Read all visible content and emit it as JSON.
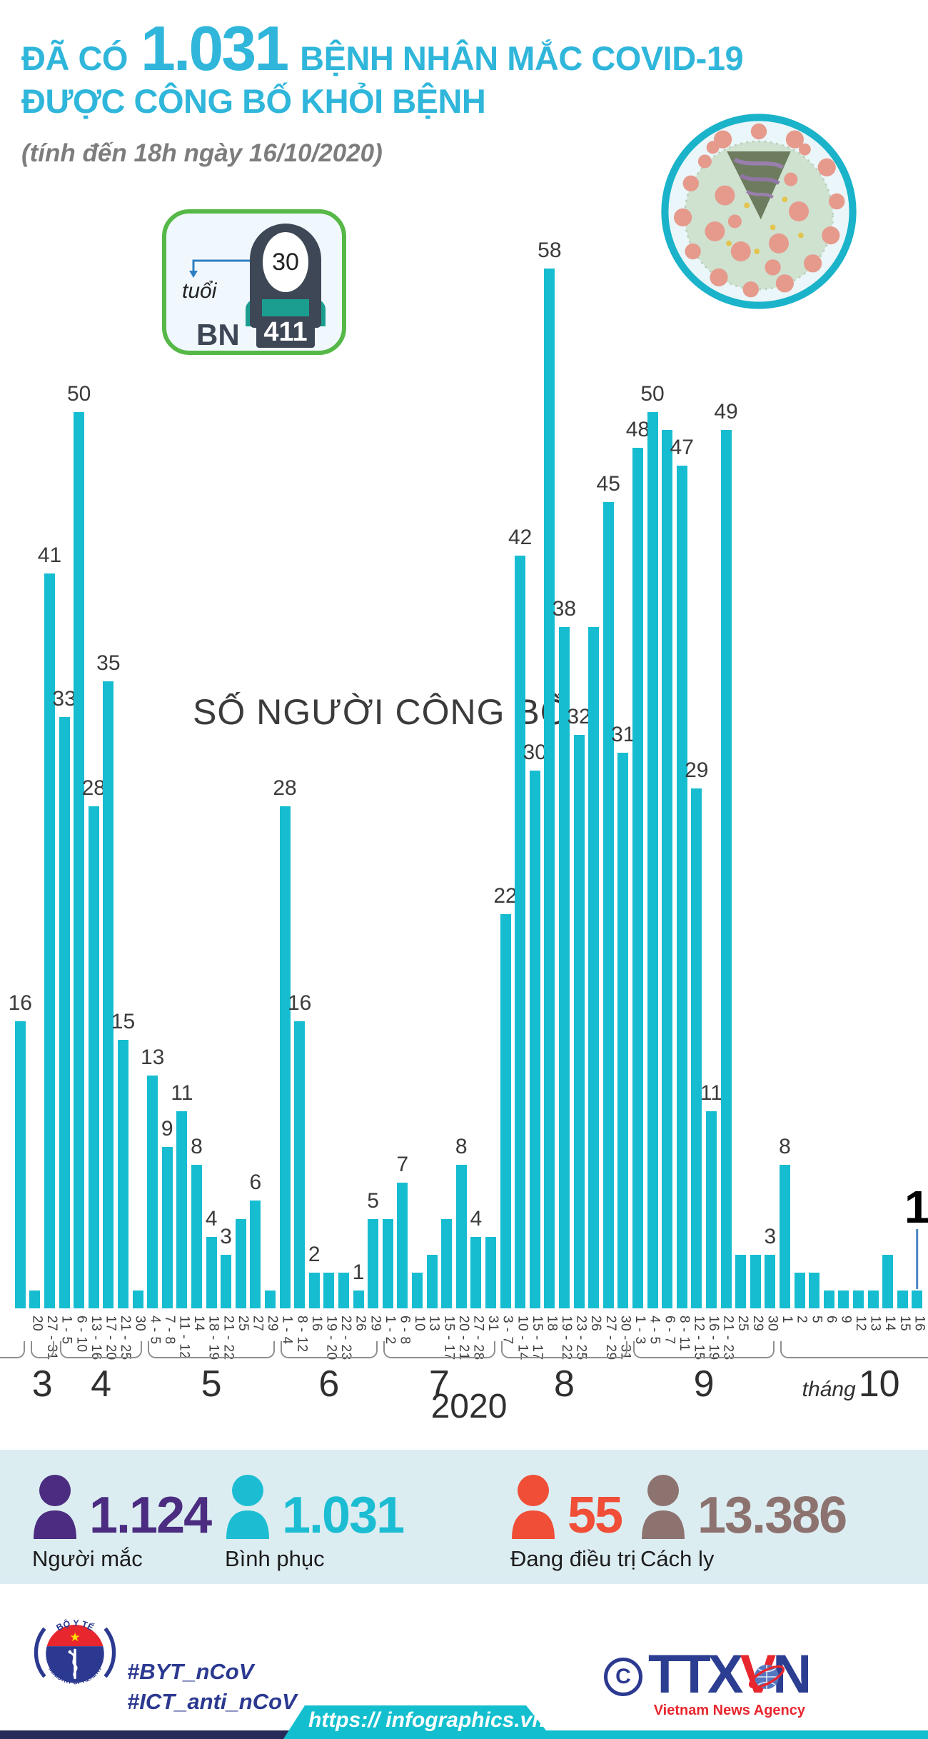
{
  "header": {
    "title_prefix": "ĐÃ CÓ",
    "title_number": "1.031",
    "title_suffix": "BỆNH NHÂN MẮC COVID-19",
    "title_line2": "ĐƯỢC CÔNG BỐ KHỎI BỆNH",
    "subtitle": "(tính đến 18h ngày 16/10/2020)",
    "accent_color": "#2fb6da"
  },
  "patient_badge": {
    "age_label": "tuổi",
    "age_value": "30",
    "bn_label": "BN",
    "bn_number": "411",
    "border_color": "#56b847"
  },
  "chart_data": {
    "type": "bar",
    "title": "SỐ NGƯỜI CÔNG BỐ",
    "year_label": "2020",
    "month_axis_word": "tháng",
    "bar_color": "#16bdd1",
    "ylim": [
      0,
      58
    ],
    "legend_position": "none",
    "grid": false,
    "annotation": {
      "text": "1",
      "applies_to": "16/10"
    },
    "groups": [
      {
        "month": "",
        "cut_left": true,
        "bars": [
          {
            "date": "",
            "value": 16,
            "show_value": true
          }
        ]
      },
      {
        "month": "3",
        "bars": [
          {
            "date": "20",
            "value": 1,
            "show_value": false
          },
          {
            "date": "27 - 31",
            "value": 41,
            "show_value": true
          }
        ]
      },
      {
        "month": "4",
        "bars": [
          {
            "date": "1 - 5",
            "value": 33,
            "show_value": true
          },
          {
            "date": "6 - 10",
            "value": 50,
            "show_value": true
          },
          {
            "date": "13 - 16",
            "value": 28,
            "show_value": true
          },
          {
            "date": "17 - 20",
            "value": 35,
            "show_value": true
          },
          {
            "date": "21 - 25",
            "value": 15,
            "show_value": true
          },
          {
            "date": "30",
            "value": 1,
            "show_value": false
          }
        ]
      },
      {
        "month": "5",
        "bars": [
          {
            "date": "4 - 5",
            "value": 13,
            "show_value": true
          },
          {
            "date": "7 - 8",
            "value": 9,
            "show_value": true
          },
          {
            "date": "11 - 12",
            "value": 11,
            "show_value": true
          },
          {
            "date": "14",
            "value": 8,
            "show_value": true
          },
          {
            "date": "18 - 19",
            "value": 4,
            "show_value": true
          },
          {
            "date": "21 - 22",
            "value": 3,
            "show_value": true
          },
          {
            "date": "25",
            "value": 5,
            "show_value": false
          },
          {
            "date": "27",
            "value": 6,
            "show_value": true
          },
          {
            "date": "29",
            "value": 1,
            "show_value": false
          }
        ]
      },
      {
        "month": "6",
        "bars": [
          {
            "date": "1 - 4",
            "value": 28,
            "show_value": true
          },
          {
            "date": "8 - 12",
            "value": 16,
            "show_value": true
          },
          {
            "date": "16",
            "value": 2,
            "show_value": true
          },
          {
            "date": "19 - 20",
            "value": 2,
            "show_value": false
          },
          {
            "date": "22 - 23",
            "value": 2,
            "show_value": false
          },
          {
            "date": "26",
            "value": 1,
            "show_value": true
          },
          {
            "date": "29",
            "value": 5,
            "show_value": true
          }
        ]
      },
      {
        "month": "7",
        "bars": [
          {
            "date": "1 - 2",
            "value": 5,
            "show_value": false
          },
          {
            "date": "6 - 8",
            "value": 7,
            "show_value": true
          },
          {
            "date": "10",
            "value": 2,
            "show_value": false
          },
          {
            "date": "13",
            "value": 3,
            "show_value": false
          },
          {
            "date": "15 - 17",
            "value": 5,
            "show_value": false
          },
          {
            "date": "20 - 21",
            "value": 8,
            "show_value": true
          },
          {
            "date": "27 - 28",
            "value": 4,
            "show_value": true
          },
          {
            "date": "31",
            "value": 4,
            "show_value": false
          }
        ]
      },
      {
        "month": "8",
        "bars": [
          {
            "date": "3 - 7",
            "value": 22,
            "show_value": true
          },
          {
            "date": "10 - 14",
            "value": 42,
            "show_value": true
          },
          {
            "date": "15 - 17",
            "value": 30,
            "show_value": true
          },
          {
            "date": "18",
            "value": 58,
            "show_value": true
          },
          {
            "date": "19 - 22",
            "value": 38,
            "show_value": true
          },
          {
            "date": "23 - 25",
            "value": 32,
            "show_value": true
          },
          {
            "date": "26",
            "value": 38,
            "show_value": false
          },
          {
            "date": "27 - 29",
            "value": 45,
            "show_value": true
          },
          {
            "date": "30 - 31",
            "value": 31,
            "show_value": true
          }
        ]
      },
      {
        "month": "9",
        "bars": [
          {
            "date": "1 - 3",
            "value": 48,
            "show_value": true
          },
          {
            "date": "4 - 5",
            "value": 50,
            "show_value": true
          },
          {
            "date": "6 - 7",
            "value": 49,
            "show_value": false
          },
          {
            "date": "8 - 11",
            "value": 47,
            "show_value": true
          },
          {
            "date": "12 - 15",
            "value": 29,
            "show_value": true
          },
          {
            "date": "16 - 19",
            "value": 11,
            "show_value": true
          },
          {
            "date": "21 - 23",
            "value": 49,
            "show_value": true
          },
          {
            "date": "25",
            "value": 3,
            "show_value": false
          },
          {
            "date": "29",
            "value": 3,
            "show_value": false
          },
          {
            "date": "30",
            "value": 3,
            "show_value": true
          }
        ]
      },
      {
        "month": "10",
        "use_month_word": true,
        "cut_right": true,
        "bars": [
          {
            "date": "1",
            "value": 8,
            "show_value": true
          },
          {
            "date": "2",
            "value": 2,
            "show_value": false
          },
          {
            "date": "5",
            "value": 2,
            "show_value": false
          },
          {
            "date": "6",
            "value": 1,
            "show_value": false
          },
          {
            "date": "9",
            "value": 1,
            "show_value": false
          },
          {
            "date": "12",
            "value": 1,
            "show_value": false
          },
          {
            "date": "13",
            "value": 1,
            "show_value": false
          },
          {
            "date": "14",
            "value": 3,
            "show_value": false
          },
          {
            "date": "15",
            "value": 1,
            "show_value": false
          },
          {
            "date": "16",
            "value": 1,
            "show_value": false,
            "annotation": "1"
          }
        ]
      }
    ]
  },
  "stats": {
    "items": [
      {
        "value": "1.124",
        "label": "Người mắc",
        "color": "#4b2c80"
      },
      {
        "value": "1.031",
        "label": "Bình phục",
        "color": "#1cbdd2"
      },
      {
        "value": "55",
        "label": "Đang điều trị",
        "color": "#f04e37"
      },
      {
        "value": "13.386",
        "label": "Cách ly",
        "color": "#8d7370"
      }
    ],
    "background": "#dcedf2"
  },
  "footer": {
    "moh_logo_top": "BỘ Y TẾ",
    "moh_logo_bottom": "MINISTRY OF HEALTH",
    "hashtag1": "#BYT_nCoV",
    "hashtag2": "#ICT_anti_nCoV",
    "copyright_symbol": "C",
    "agency_letters_1": "TTX",
    "agency_letters_2": "V",
    "agency_letters_3": "N",
    "agency_name": "Vietnam News Agency",
    "url": "https:// infographics.vn",
    "ribbon_color": "#13bfce",
    "strip_color": "#262b59"
  }
}
